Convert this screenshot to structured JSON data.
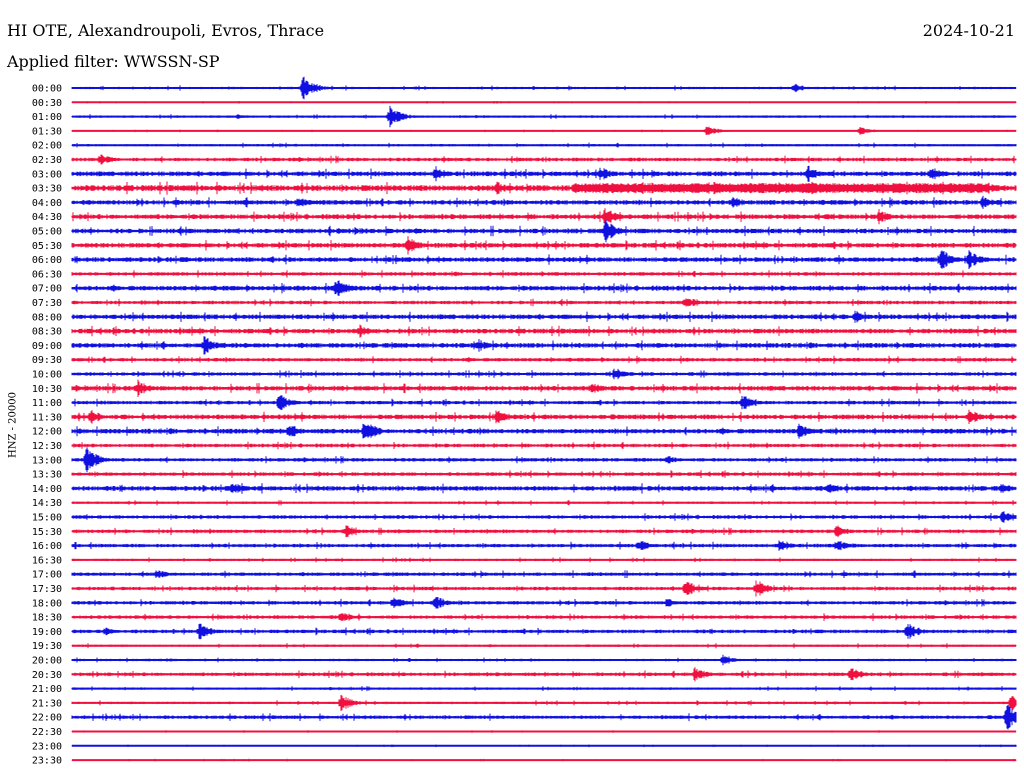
{
  "header": {
    "station": "HI OTE, Alexandroupoli, Evros, Thrace",
    "date": "2024-10-21",
    "filter": "Applied filter: WWSSN-SP",
    "channel": "HNZ - 20000"
  },
  "colors": {
    "even": "#1010e0",
    "odd": "#f01040"
  },
  "chart_data": {
    "type": "line",
    "title": "HI OTE, Alexandroupoli, Evros, Thrace",
    "ylabel": "HNZ - 20000",
    "row_labels": [
      "00:00",
      "00:30",
      "01:00",
      "01:30",
      "02:00",
      "02:30",
      "03:00",
      "03:30",
      "04:00",
      "04:30",
      "05:00",
      "05:30",
      "06:00",
      "06:30",
      "07:00",
      "07:30",
      "08:00",
      "08:30",
      "09:00",
      "09:30",
      "10:00",
      "10:30",
      "11:00",
      "11:30",
      "12:00",
      "12:30",
      "13:00",
      "13:30",
      "14:00",
      "14:30",
      "15:00",
      "15:30",
      "16:00",
      "16:30",
      "17:00",
      "17:30",
      "18:00",
      "18:30",
      "19:00",
      "19:30",
      "20:00",
      "20:30",
      "21:00",
      "21:30",
      "22:00",
      "22:30",
      "23:00",
      "23:30"
    ],
    "row_color_cycle": [
      "blue",
      "red"
    ],
    "noise_level": [
      2,
      1,
      2,
      1,
      2,
      3,
      4,
      5,
      4,
      4,
      4,
      4,
      4,
      3,
      4,
      3,
      4,
      4,
      4,
      3,
      3,
      4,
      3,
      4,
      4,
      3,
      3,
      3,
      4,
      2,
      3,
      3,
      3,
      2,
      3,
      3,
      3,
      3,
      3,
      2,
      2,
      3,
      2,
      2,
      3,
      1,
      1,
      1
    ],
    "events": [
      {
        "row": 0,
        "x": 0.245,
        "amp": 14
      },
      {
        "row": 0,
        "x": 0.765,
        "amp": 5
      },
      {
        "row": 2,
        "x": 0.337,
        "amp": 12
      },
      {
        "row": 2,
        "x": 0.175,
        "amp": 3
      },
      {
        "row": 3,
        "x": 0.672,
        "amp": 6
      },
      {
        "row": 3,
        "x": 0.835,
        "amp": 5
      },
      {
        "row": 5,
        "x": 0.03,
        "amp": 6
      },
      {
        "row": 6,
        "x": 0.385,
        "amp": 8
      },
      {
        "row": 6,
        "x": 0.56,
        "amp": 8
      },
      {
        "row": 6,
        "x": 0.78,
        "amp": 9
      },
      {
        "row": 6,
        "x": 0.91,
        "amp": 8
      },
      {
        "row": 7,
        "x": 0.45,
        "amp": 8
      },
      {
        "row": 7,
        "x": 0.68,
        "amp": 8
      },
      {
        "row": 7,
        "x": 0.785,
        "amp": 9
      },
      {
        "row": 7,
        "x": 0.97,
        "amp": 7
      },
      {
        "row": 8,
        "x": 0.24,
        "amp": 7
      },
      {
        "row": 8,
        "x": 0.7,
        "amp": 7
      },
      {
        "row": 8,
        "x": 0.965,
        "amp": 7
      },
      {
        "row": 9,
        "x": 0.565,
        "amp": 10
      },
      {
        "row": 9,
        "x": 0.855,
        "amp": 8
      },
      {
        "row": 10,
        "x": 0.565,
        "amp": 12
      },
      {
        "row": 11,
        "x": 0.355,
        "amp": 10
      },
      {
        "row": 12,
        "x": 0.92,
        "amp": 12
      },
      {
        "row": 12,
        "x": 0.95,
        "amp": 10
      },
      {
        "row": 14,
        "x": 0.28,
        "amp": 11
      },
      {
        "row": 15,
        "x": 0.65,
        "amp": 7
      },
      {
        "row": 16,
        "x": 0.83,
        "amp": 7
      },
      {
        "row": 17,
        "x": 0.305,
        "amp": 7
      },
      {
        "row": 18,
        "x": 0.14,
        "amp": 10
      },
      {
        "row": 18,
        "x": 0.43,
        "amp": 7
      },
      {
        "row": 20,
        "x": 0.575,
        "amp": 7
      },
      {
        "row": 21,
        "x": 0.07,
        "amp": 9
      },
      {
        "row": 21,
        "x": 0.55,
        "amp": 7
      },
      {
        "row": 22,
        "x": 0.22,
        "amp": 10
      },
      {
        "row": 22,
        "x": 0.71,
        "amp": 9
      },
      {
        "row": 23,
        "x": 0.02,
        "amp": 8
      },
      {
        "row": 23,
        "x": 0.45,
        "amp": 9
      },
      {
        "row": 23,
        "x": 0.95,
        "amp": 9
      },
      {
        "row": 24,
        "x": 0.23,
        "amp": 9
      },
      {
        "row": 24,
        "x": 0.31,
        "amp": 13
      },
      {
        "row": 24,
        "x": 0.77,
        "amp": 9
      },
      {
        "row": 26,
        "x": 0.015,
        "amp": 14
      },
      {
        "row": 26,
        "x": 0.63,
        "amp": 5
      },
      {
        "row": 28,
        "x": 0.17,
        "amp": 7
      },
      {
        "row": 28,
        "x": 0.8,
        "amp": 6
      },
      {
        "row": 28,
        "x": 0.985,
        "amp": 6
      },
      {
        "row": 30,
        "x": 0.985,
        "amp": 7
      },
      {
        "row": 31,
        "x": 0.29,
        "amp": 7
      },
      {
        "row": 31,
        "x": 0.81,
        "amp": 7
      },
      {
        "row": 32,
        "x": 0.6,
        "amp": 7
      },
      {
        "row": 32,
        "x": 0.75,
        "amp": 7
      },
      {
        "row": 32,
        "x": 0.81,
        "amp": 7
      },
      {
        "row": 34,
        "x": 0.09,
        "amp": 6
      },
      {
        "row": 35,
        "x": 0.65,
        "amp": 9
      },
      {
        "row": 35,
        "x": 0.725,
        "amp": 10
      },
      {
        "row": 36,
        "x": 0.34,
        "amp": 7
      },
      {
        "row": 36,
        "x": 0.385,
        "amp": 8
      },
      {
        "row": 36,
        "x": 0.63,
        "amp": 5
      },
      {
        "row": 37,
        "x": 0.285,
        "amp": 6
      },
      {
        "row": 38,
        "x": 0.035,
        "amp": 5
      },
      {
        "row": 38,
        "x": 0.135,
        "amp": 9
      },
      {
        "row": 38,
        "x": 0.885,
        "amp": 10
      },
      {
        "row": 40,
        "x": 0.69,
        "amp": 6
      },
      {
        "row": 41,
        "x": 0.66,
        "amp": 8
      },
      {
        "row": 41,
        "x": 0.825,
        "amp": 8
      },
      {
        "row": 43,
        "x": 0.285,
        "amp": 9
      },
      {
        "row": 43,
        "x": 0.995,
        "amp": 8
      },
      {
        "row": 44,
        "x": 0.99,
        "amp": 14
      }
    ],
    "continuous_burst": {
      "row": 7,
      "x_start": 0.53,
      "x_end": 0.97,
      "amp": 5
    }
  }
}
